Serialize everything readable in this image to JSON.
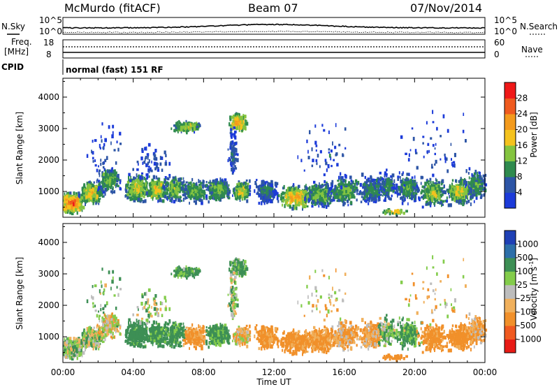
{
  "header": {
    "station": "McMurdo (fitACF)",
    "beam": "Beam 07",
    "date": "07/Nov/2014"
  },
  "top_panel": {
    "left_label": "N.Sky",
    "right_label": "N.Search",
    "left_top_tick": "10^5",
    "left_bottom_tick": "10^0",
    "right_top_tick": "10^5",
    "right_bottom_tick": "10^0"
  },
  "freq_panel": {
    "left_label_1": "Freq.",
    "left_label_2": "[MHz]",
    "cpid_label": "CPID",
    "right_label": "Nave",
    "left_ticks": [
      "18",
      "8"
    ],
    "right_ticks": [
      "60",
      "0"
    ]
  },
  "mode_text": "normal (fast) 151 RF",
  "colors": {
    "power": [
      "#1c3bd9",
      "#2d55a6",
      "#2f8a4e",
      "#84c440",
      "#f4c21e",
      "#f39a1c",
      "#ef5a1e",
      "#ef1818"
    ],
    "velocity": [
      "#e81b16",
      "#f05a20",
      "#f1902a",
      "#f0b05c",
      "#bdbdbd",
      "#83cc4b",
      "#3d8f55",
      "#2d6fa9",
      "#1f40b5"
    ]
  },
  "chart_data": [
    {
      "type": "heatmap",
      "name": "Power",
      "ylabel": "Slant Range [km]",
      "yticks": [
        1000,
        2000,
        3000,
        4000
      ],
      "ylim": [
        180,
        4600
      ],
      "xlim": [
        0,
        24
      ],
      "colorbar_label": "Power [dB]",
      "colorbar_ticks": [
        "4",
        "8",
        "12",
        "16",
        "20",
        "24",
        "28"
      ]
    },
    {
      "type": "heatmap",
      "name": "Velocity",
      "xlabel": "Time UT",
      "xticks": [
        "00:00",
        "04:00",
        "08:00",
        "12:00",
        "16:00",
        "20:00",
        "00:00"
      ],
      "ylabel": "Slant Range [km]",
      "yticks": [
        1000,
        2000,
        3000,
        4000
      ],
      "ylim": [
        180,
        4600
      ],
      "xlim": [
        0,
        24
      ],
      "colorbar_label": "Velocity [m s^-1]",
      "colorbar_ticks": [
        "-1000",
        "-500",
        "-100",
        "-25",
        "25",
        "100",
        "500",
        "1000"
      ]
    }
  ]
}
